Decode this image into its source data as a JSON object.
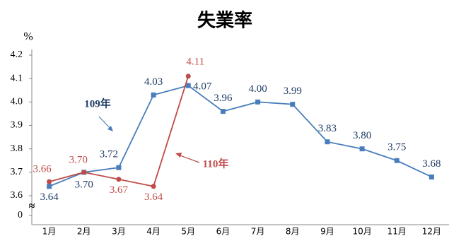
{
  "chart_data": {
    "type": "line",
    "title": "失業率",
    "y_unit": "%",
    "categories": [
      "1月",
      "2月",
      "3月",
      "4月",
      "5月",
      "6月",
      "7月",
      "8月",
      "9月",
      "10月",
      "11月",
      "12月"
    ],
    "series": [
      {
        "name": "109年",
        "color": "#4a7ebb",
        "label_color": "#1f3c66",
        "marker": "square",
        "values": [
          3.64,
          3.7,
          3.72,
          4.03,
          4.07,
          3.96,
          4.0,
          3.99,
          3.83,
          3.8,
          3.75,
          3.68
        ],
        "value_labels": [
          "3.64",
          "3.70",
          "3.72",
          "4.03",
          "4.07",
          "3.96",
          "4.00",
          "3.99",
          "3.83",
          "3.80",
          "3.75",
          "3.68"
        ]
      },
      {
        "name": "110年",
        "color": "#be4b48",
        "label_color": "#be4b48",
        "marker": "circle",
        "values": [
          3.66,
          3.7,
          3.67,
          3.64,
          4.11,
          null,
          null,
          null,
          null,
          null,
          null,
          null
        ],
        "value_labels": [
          "3.66",
          "3.70",
          "3.67",
          "3.64",
          "4.11",
          null,
          null,
          null,
          null,
          null,
          null,
          null
        ]
      }
    ],
    "ylim": [
      0,
      4.2
    ],
    "axis_break": [
      0,
      3.6
    ],
    "yticks": [
      0,
      3.6,
      {
        "value": 3.7,
        "label": "3.7"
      },
      3.8,
      3.9,
      {
        "value": 4,
        "label": "4.0"
      },
      4.1,
      4.2
    ],
    "axis_break_symbol": "≈"
  }
}
